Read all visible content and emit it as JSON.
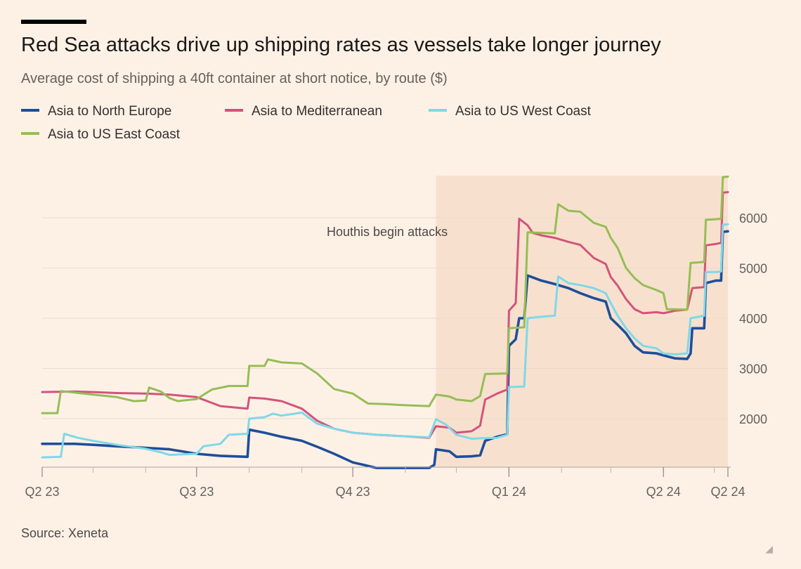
{
  "chart_data": {
    "type": "line",
    "title": "Red Sea attacks drive up shipping rates as vessels take longer journey",
    "subtitle": "Average cost of shipping a 40ft container at short notice, by route ($)",
    "source": "Source: Xeneta",
    "y_ticks": [
      "6000",
      "5000",
      "4000",
      "3000",
      "2000"
    ],
    "y_tick_values": [
      6000,
      5000,
      4000,
      3000,
      2000
    ],
    "ylim": [
      1000,
      6900
    ],
    "x_ticks": [
      "Q2 23",
      "Q3 23",
      "Q4 23",
      "Q1 24",
      "Q2 24",
      "Q2 24"
    ],
    "x_tick_dates": [
      "2023-04-01",
      "2023-07-01",
      "2023-10-01",
      "2024-01-01",
      "2024-04-01",
      "2024-05-09"
    ],
    "x_range": [
      "2023-04-01",
      "2024-05-09"
    ],
    "annotation": {
      "label": "Houthis begin attacks",
      "start": "2023-11-19",
      "end": "2024-05-09"
    },
    "grid": true,
    "legend_position": "top-left",
    "series": [
      {
        "name": "Asia to North Europe",
        "color": "#1f4e99",
        "points": [
          [
            "2023-04-01",
            1500
          ],
          [
            "2023-04-20",
            1500
          ],
          [
            "2023-05-01",
            1480
          ],
          [
            "2023-05-15",
            1450
          ],
          [
            "2023-06-01",
            1420
          ],
          [
            "2023-06-15",
            1390
          ],
          [
            "2023-07-01",
            1300
          ],
          [
            "2023-07-15",
            1260
          ],
          [
            "2023-07-31",
            1240
          ],
          [
            "2023-08-01",
            1780
          ],
          [
            "2023-08-10",
            1720
          ],
          [
            "2023-08-20",
            1640
          ],
          [
            "2023-09-01",
            1560
          ],
          [
            "2023-09-10",
            1440
          ],
          [
            "2023-09-20",
            1300
          ],
          [
            "2023-10-01",
            1130
          ],
          [
            "2023-10-10",
            1060
          ],
          [
            "2023-10-15",
            1020
          ],
          [
            "2023-10-31",
            1020
          ],
          [
            "2023-11-15",
            1020
          ],
          [
            "2023-11-18",
            1080
          ],
          [
            "2023-11-19",
            1390
          ],
          [
            "2023-11-27",
            1350
          ],
          [
            "2023-12-01",
            1240
          ],
          [
            "2023-12-10",
            1250
          ],
          [
            "2023-12-15",
            1270
          ],
          [
            "2023-12-18",
            1560
          ],
          [
            "2023-12-25",
            1640
          ],
          [
            "2023-12-31",
            1690
          ],
          [
            "2024-01-01",
            3450
          ],
          [
            "2024-01-05",
            3580
          ],
          [
            "2024-01-07",
            4000
          ],
          [
            "2024-01-10",
            4000
          ],
          [
            "2024-01-12",
            4850
          ],
          [
            "2024-01-20",
            4750
          ],
          [
            "2024-01-28",
            4680
          ],
          [
            "2024-02-05",
            4600
          ],
          [
            "2024-02-12",
            4500
          ],
          [
            "2024-02-20",
            4400
          ],
          [
            "2024-02-27",
            4330
          ],
          [
            "2024-03-01",
            4000
          ],
          [
            "2024-03-05",
            3870
          ],
          [
            "2024-03-10",
            3700
          ],
          [
            "2024-03-15",
            3450
          ],
          [
            "2024-03-20",
            3320
          ],
          [
            "2024-03-28",
            3300
          ],
          [
            "2024-04-01",
            3260
          ],
          [
            "2024-04-08",
            3200
          ],
          [
            "2024-04-15",
            3190
          ],
          [
            "2024-04-17",
            3300
          ],
          [
            "2024-04-18",
            3800
          ],
          [
            "2024-04-25",
            3800
          ],
          [
            "2024-04-26",
            4700
          ],
          [
            "2024-05-02",
            4750
          ],
          [
            "2024-05-05",
            4750
          ],
          [
            "2024-05-06",
            5720
          ],
          [
            "2024-05-09",
            5730
          ]
        ]
      },
      {
        "name": "Asia to Mediterranean",
        "color": "#d5527b",
        "points": [
          [
            "2023-04-01",
            2530
          ],
          [
            "2023-04-20",
            2540
          ],
          [
            "2023-05-01",
            2530
          ],
          [
            "2023-05-15",
            2510
          ],
          [
            "2023-06-01",
            2500
          ],
          [
            "2023-06-15",
            2480
          ],
          [
            "2023-07-01",
            2430
          ],
          [
            "2023-07-15",
            2250
          ],
          [
            "2023-07-31",
            2200
          ],
          [
            "2023-08-01",
            2420
          ],
          [
            "2023-08-10",
            2400
          ],
          [
            "2023-08-20",
            2350
          ],
          [
            "2023-09-01",
            2200
          ],
          [
            "2023-09-10",
            1960
          ],
          [
            "2023-09-20",
            1800
          ],
          [
            "2023-10-01",
            1720
          ],
          [
            "2023-10-15",
            1680
          ],
          [
            "2023-10-31",
            1650
          ],
          [
            "2023-11-15",
            1620
          ],
          [
            "2023-11-19",
            1850
          ],
          [
            "2023-11-27",
            1820
          ],
          [
            "2023-12-01",
            1720
          ],
          [
            "2023-12-10",
            1750
          ],
          [
            "2023-12-15",
            1860
          ],
          [
            "2023-12-18",
            2380
          ],
          [
            "2023-12-25",
            2500
          ],
          [
            "2023-12-31",
            2580
          ],
          [
            "2024-01-01",
            4150
          ],
          [
            "2024-01-05",
            4300
          ],
          [
            "2024-01-07",
            5980
          ],
          [
            "2024-01-12",
            5850
          ],
          [
            "2024-01-15",
            5700
          ],
          [
            "2024-01-20",
            5650
          ],
          [
            "2024-01-28",
            5600
          ],
          [
            "2024-02-05",
            5520
          ],
          [
            "2024-02-12",
            5460
          ],
          [
            "2024-02-20",
            5200
          ],
          [
            "2024-02-27",
            5080
          ],
          [
            "2024-03-01",
            4820
          ],
          [
            "2024-03-05",
            4650
          ],
          [
            "2024-03-10",
            4380
          ],
          [
            "2024-03-15",
            4180
          ],
          [
            "2024-03-20",
            4100
          ],
          [
            "2024-03-28",
            4120
          ],
          [
            "2024-04-01",
            4100
          ],
          [
            "2024-04-08",
            4150
          ],
          [
            "2024-04-15",
            4170
          ],
          [
            "2024-04-18",
            4600
          ],
          [
            "2024-04-25",
            4620
          ],
          [
            "2024-04-26",
            5450
          ],
          [
            "2024-05-02",
            5480
          ],
          [
            "2024-05-05",
            5500
          ],
          [
            "2024-05-06",
            6500
          ],
          [
            "2024-05-09",
            6510
          ]
        ]
      },
      {
        "name": "Asia to US West Coast",
        "color": "#7fd8e8",
        "points": [
          [
            "2023-04-01",
            1230
          ],
          [
            "2023-04-12",
            1240
          ],
          [
            "2023-04-14",
            1700
          ],
          [
            "2023-04-22",
            1620
          ],
          [
            "2023-05-01",
            1560
          ],
          [
            "2023-05-15",
            1480
          ],
          [
            "2023-06-01",
            1400
          ],
          [
            "2023-06-10",
            1330
          ],
          [
            "2023-06-15",
            1280
          ],
          [
            "2023-07-01",
            1300
          ],
          [
            "2023-07-05",
            1450
          ],
          [
            "2023-07-15",
            1500
          ],
          [
            "2023-07-20",
            1680
          ],
          [
            "2023-07-31",
            1700
          ],
          [
            "2023-08-01",
            2000
          ],
          [
            "2023-08-10",
            2030
          ],
          [
            "2023-08-15",
            2100
          ],
          [
            "2023-08-20",
            2060
          ],
          [
            "2023-09-01",
            2120
          ],
          [
            "2023-09-10",
            1900
          ],
          [
            "2023-09-20",
            1800
          ],
          [
            "2023-10-01",
            1720
          ],
          [
            "2023-10-15",
            1680
          ],
          [
            "2023-10-31",
            1650
          ],
          [
            "2023-11-15",
            1630
          ],
          [
            "2023-11-19",
            1990
          ],
          [
            "2023-11-25",
            1880
          ],
          [
            "2023-12-01",
            1680
          ],
          [
            "2023-12-10",
            1600
          ],
          [
            "2023-12-15",
            1610
          ],
          [
            "2023-12-25",
            1620
          ],
          [
            "2023-12-31",
            1680
          ],
          [
            "2024-01-01",
            2630
          ],
          [
            "2024-01-10",
            2640
          ],
          [
            "2024-01-12",
            4000
          ],
          [
            "2024-01-20",
            4030
          ],
          [
            "2024-01-28",
            4050
          ],
          [
            "2024-01-30",
            4830
          ],
          [
            "2024-02-05",
            4700
          ],
          [
            "2024-02-12",
            4660
          ],
          [
            "2024-02-20",
            4600
          ],
          [
            "2024-02-27",
            4500
          ],
          [
            "2024-03-01",
            4300
          ],
          [
            "2024-03-05",
            4050
          ],
          [
            "2024-03-10",
            3800
          ],
          [
            "2024-03-15",
            3600
          ],
          [
            "2024-03-20",
            3450
          ],
          [
            "2024-03-28",
            3400
          ],
          [
            "2024-04-01",
            3300
          ],
          [
            "2024-04-08",
            3280
          ],
          [
            "2024-04-15",
            3300
          ],
          [
            "2024-04-17",
            4000
          ],
          [
            "2024-04-25",
            4050
          ],
          [
            "2024-04-26",
            4920
          ],
          [
            "2024-05-02",
            4920
          ],
          [
            "2024-05-05",
            4930
          ],
          [
            "2024-05-06",
            5860
          ],
          [
            "2024-05-09",
            5870
          ]
        ]
      },
      {
        "name": "Asia to US East Coast",
        "color": "#96bd56",
        "points": [
          [
            "2023-04-01",
            2110
          ],
          [
            "2023-04-10",
            2110
          ],
          [
            "2023-04-12",
            2550
          ],
          [
            "2023-05-01",
            2480
          ],
          [
            "2023-05-15",
            2430
          ],
          [
            "2023-05-25",
            2350
          ],
          [
            "2023-06-01",
            2360
          ],
          [
            "2023-06-03",
            2620
          ],
          [
            "2023-06-10",
            2540
          ],
          [
            "2023-06-15",
            2410
          ],
          [
            "2023-06-20",
            2350
          ],
          [
            "2023-07-01",
            2390
          ],
          [
            "2023-07-10",
            2580
          ],
          [
            "2023-07-20",
            2650
          ],
          [
            "2023-07-31",
            2650
          ],
          [
            "2023-08-01",
            3050
          ],
          [
            "2023-08-10",
            3050
          ],
          [
            "2023-08-12",
            3180
          ],
          [
            "2023-08-20",
            3120
          ],
          [
            "2023-09-01",
            3100
          ],
          [
            "2023-09-10",
            2900
          ],
          [
            "2023-09-20",
            2590
          ],
          [
            "2023-10-01",
            2500
          ],
          [
            "2023-10-10",
            2300
          ],
          [
            "2023-10-20",
            2290
          ],
          [
            "2023-10-31",
            2270
          ],
          [
            "2023-11-15",
            2250
          ],
          [
            "2023-11-19",
            2480
          ],
          [
            "2023-11-27",
            2440
          ],
          [
            "2023-12-01",
            2380
          ],
          [
            "2023-12-10",
            2350
          ],
          [
            "2023-12-15",
            2450
          ],
          [
            "2023-12-18",
            2890
          ],
          [
            "2023-12-31",
            2900
          ],
          [
            "2024-01-01",
            3800
          ],
          [
            "2024-01-10",
            3820
          ],
          [
            "2024-01-12",
            5710
          ],
          [
            "2024-01-20",
            5700
          ],
          [
            "2024-01-28",
            5690
          ],
          [
            "2024-01-30",
            6270
          ],
          [
            "2024-02-05",
            6140
          ],
          [
            "2024-02-12",
            6120
          ],
          [
            "2024-02-20",
            5900
          ],
          [
            "2024-02-27",
            5820
          ],
          [
            "2024-03-01",
            5600
          ],
          [
            "2024-03-05",
            5400
          ],
          [
            "2024-03-10",
            5000
          ],
          [
            "2024-03-15",
            4800
          ],
          [
            "2024-03-20",
            4660
          ],
          [
            "2024-03-28",
            4560
          ],
          [
            "2024-04-01",
            4500
          ],
          [
            "2024-04-03",
            4180
          ],
          [
            "2024-04-15",
            4170
          ],
          [
            "2024-04-17",
            5100
          ],
          [
            "2024-04-25",
            5120
          ],
          [
            "2024-04-26",
            5960
          ],
          [
            "2024-05-02",
            5970
          ],
          [
            "2024-05-05",
            5980
          ],
          [
            "2024-05-06",
            6810
          ],
          [
            "2024-05-09",
            6820
          ]
        ]
      }
    ]
  }
}
